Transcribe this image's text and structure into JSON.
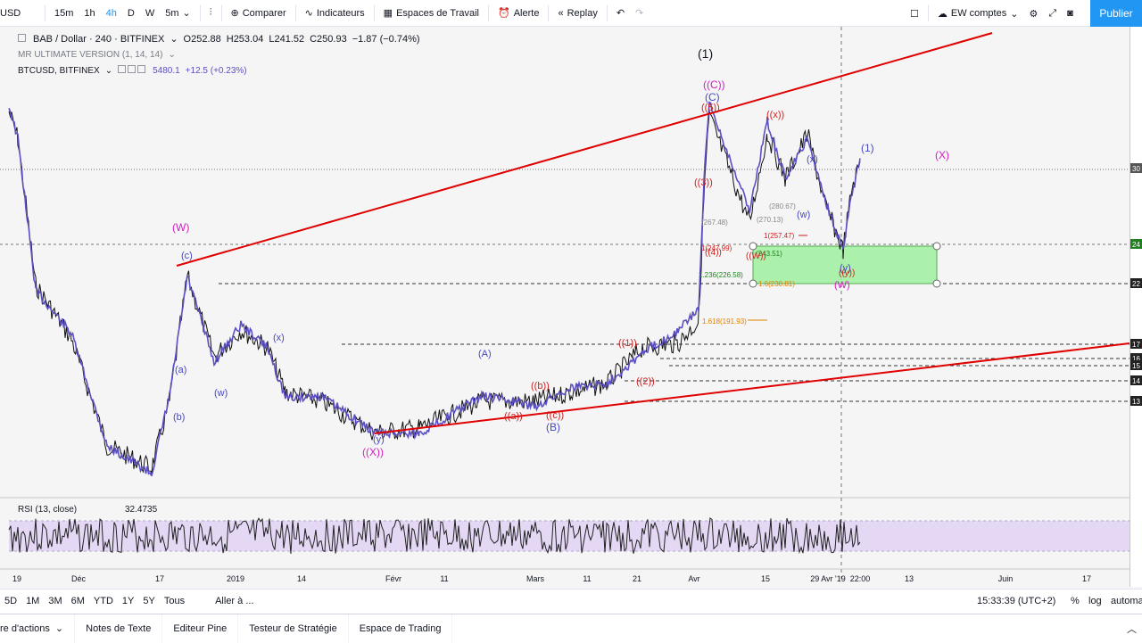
{
  "topbar": {
    "symbol_fragment": "USD",
    "intervals": [
      "15m",
      "1h",
      "4h",
      "D",
      "W",
      "5m"
    ],
    "active_interval": "4h",
    "compare": "Comparer",
    "indicators": "Indicateurs",
    "workspaces": "Espaces de Travail",
    "alert": "Alerte",
    "replay": "Replay",
    "account": "EW comptes",
    "publish": "Publier"
  },
  "legend": {
    "main": {
      "name": "BAB / Dollar · 240 · BITFINEX",
      "o": "O252.88",
      "h": "H253.04",
      "l": "L241.52",
      "c": "C250.93",
      "chg": "−1.87 (−0.74%)"
    },
    "indicator": "MR ULTIMATE VERSION (1, 14, 14)",
    "compare": {
      "name": "BTCUSD, BITFINEX",
      "value": "5480.1",
      "chg": "+12.5 (+0.23%)"
    }
  },
  "chart_labels": {
    "W_big": "(W)",
    "c_small": "(c)",
    "b_small": "(b)",
    "a_small": "(a)",
    "w_small": "(w)",
    "x_small": "(x)",
    "y_small": "(y)",
    "XX": "((X))",
    "one_black": "(1)",
    "CC": "((C))",
    "C": "(C)",
    "five": "((5))",
    "xx_red": "((x))",
    "one_blue": "(1)",
    "X_pink": "(X)",
    "three": "((3))",
    "four": "((4))",
    "A": "(A)",
    "B": "(B)",
    "a_red": "((a))",
    "b_red": "((b))",
    "c_red": "((c))",
    "one_red": "((1))",
    "two_red": "((2))",
    "W_small": "((W))",
    "y2": "((y))",
    "W2": "(W)",
    "w2": "(w)",
    "x2": "(x)",
    "y3": "(y)"
  },
  "fib_labels": {
    "f1": "1(257.47)",
    "f2": "1(247.99)",
    "f3": "(243.51)",
    "f4": "1.236(226.58)",
    "f5": "1.618(191.93)",
    "f6": "(267.48)",
    "f7": "(270.13)",
    "f8": "(280.67)",
    "f9": "1.6(230.81)"
  },
  "price_scale_tags": [
    "30",
    "24",
    "22",
    "17",
    "16",
    "15",
    "14",
    "13"
  ],
  "rsi": {
    "label": "RSI (13, close)",
    "value": "32.4735",
    "levels": [
      "75",
      "50",
      "25"
    ]
  },
  "time_axis": [
    "19",
    "Déc",
    "17",
    "2019",
    "14",
    "Févr",
    "11",
    "Mars",
    "11",
    "21",
    "Avr",
    "15",
    "29 Avr '19",
    "22:00",
    "13",
    "Juin",
    "17"
  ],
  "bottombar": {
    "ranges": [
      "5D",
      "1M",
      "3M",
      "6M",
      "YTD",
      "1Y",
      "5Y",
      "Tous"
    ],
    "goto": "Aller à ...",
    "time": "15:33:39 (UTC+2)",
    "percent": "%",
    "log": "log",
    "auto": "automa"
  },
  "footer": {
    "tabs": [
      "re d'actions",
      "Notes de Texte",
      "Editeur Pine",
      "Testeur de Stratégie",
      "Espace de Trading"
    ]
  },
  "colors": {
    "red_line": "#e00000",
    "blue_series": "#5b4fc4",
    "green_box": "#9eef9e",
    "rsi_band": "#e4d8f5",
    "pink": "#d020c0"
  }
}
